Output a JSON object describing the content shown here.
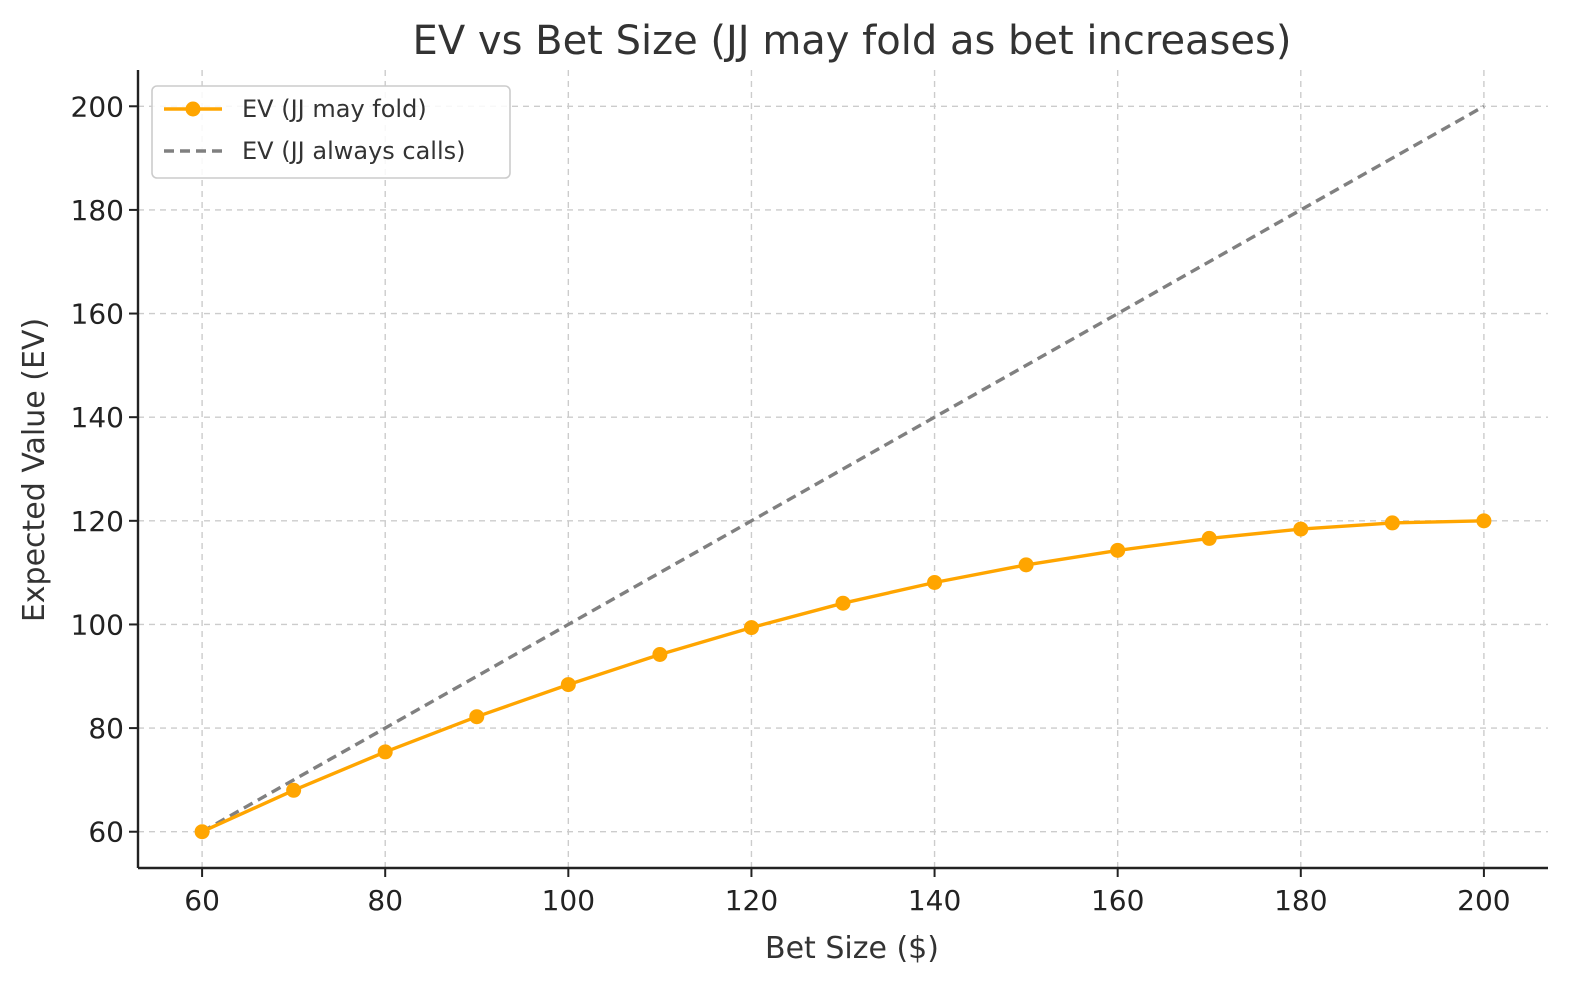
{
  "chart_data": {
    "type": "line",
    "title": "EV vs Bet Size (JJ may fold as bet increases)",
    "xlabel": "Bet Size ($)",
    "ylabel": "Expected Value (EV)",
    "xlim": [
      53,
      207
    ],
    "ylim": [
      53,
      207
    ],
    "x_ticks": [
      60,
      80,
      100,
      120,
      140,
      160,
      180,
      200
    ],
    "y_ticks": [
      60,
      80,
      100,
      120,
      140,
      160,
      180,
      200
    ],
    "grid": true,
    "legend_position": "top-left",
    "series": [
      {
        "name": "EV (JJ may fold)",
        "color": "#FFA500",
        "style": "solid",
        "marker": "circle",
        "x": [
          60,
          70,
          80,
          90,
          100,
          110,
          120,
          130,
          140,
          150,
          160,
          170,
          180,
          190,
          200
        ],
        "y": [
          60,
          68,
          75.4,
          82.2,
          88.4,
          94.2,
          99.4,
          104.1,
          108.1,
          111.5,
          114.3,
          116.6,
          118.4,
          119.6,
          120
        ]
      },
      {
        "name": "EV (JJ always calls)",
        "color": "#808080",
        "style": "dashed",
        "marker": "none",
        "x": [
          60,
          200
        ],
        "y": [
          60,
          200
        ]
      }
    ]
  }
}
